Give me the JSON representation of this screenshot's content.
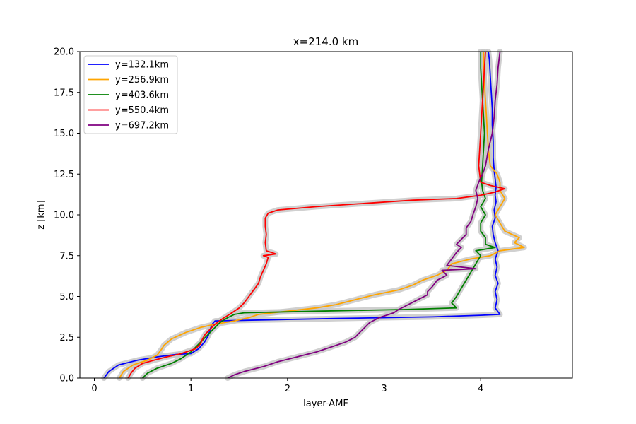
{
  "chart_data": {
    "type": "line",
    "title": "x=214.0 km",
    "xlabel": "layer-AMF",
    "ylabel": "z [km]",
    "xlim": [
      -0.15,
      4.95
    ],
    "ylim": [
      0,
      20
    ],
    "xticks": [
      "0",
      "1",
      "2",
      "3",
      "4"
    ],
    "yticks": [
      "0.0",
      "2.5",
      "5.0",
      "7.5",
      "10.0",
      "12.5",
      "15.0",
      "17.5",
      "20.0"
    ],
    "grid": false,
    "legend_position": "top-left",
    "uncertainty_band_color": "#c8c8c8",
    "series": [
      {
        "name": "y=132.1km",
        "color": "#0000ff",
        "points": [
          [
            0.1,
            0.0
          ],
          [
            0.15,
            0.4
          ],
          [
            0.25,
            0.8
          ],
          [
            0.45,
            1.1
          ],
          [
            0.65,
            1.3
          ],
          [
            0.85,
            1.45
          ],
          [
            1.0,
            1.5
          ],
          [
            1.08,
            1.8
          ],
          [
            1.14,
            2.2
          ],
          [
            1.18,
            2.6
          ],
          [
            1.2,
            3.0
          ],
          [
            1.22,
            3.3
          ],
          [
            1.25,
            3.5
          ],
          [
            2.5,
            3.65
          ],
          [
            3.5,
            3.75
          ],
          [
            4.0,
            3.85
          ],
          [
            4.2,
            3.9
          ],
          [
            4.15,
            4.3
          ],
          [
            4.17,
            4.8
          ],
          [
            4.15,
            5.3
          ],
          [
            4.18,
            5.8
          ],
          [
            4.15,
            6.3
          ],
          [
            4.17,
            6.8
          ],
          [
            4.15,
            7.3
          ],
          [
            4.18,
            7.8
          ],
          [
            4.15,
            8.3
          ],
          [
            4.13,
            8.8
          ],
          [
            4.12,
            9.3
          ],
          [
            4.15,
            9.8
          ],
          [
            4.14,
            10.3
          ],
          [
            4.16,
            10.8
          ],
          [
            4.15,
            11.2
          ],
          [
            4.16,
            11.7
          ],
          [
            4.15,
            12.2
          ],
          [
            4.14,
            12.7
          ],
          [
            4.13,
            13.5
          ],
          [
            4.13,
            14.5
          ],
          [
            4.12,
            15.5
          ],
          [
            4.12,
            16.5
          ],
          [
            4.11,
            17.5
          ],
          [
            4.1,
            18.5
          ],
          [
            4.09,
            19.5
          ],
          [
            4.08,
            20.0
          ]
        ]
      },
      {
        "name": "y=256.9km",
        "color": "#ffa500",
        "points": [
          [
            0.26,
            0.0
          ],
          [
            0.3,
            0.4
          ],
          [
            0.4,
            0.8
          ],
          [
            0.55,
            1.1
          ],
          [
            0.65,
            1.4
          ],
          [
            0.7,
            1.8
          ],
          [
            0.72,
            2.0
          ],
          [
            0.8,
            2.4
          ],
          [
            0.95,
            2.8
          ],
          [
            1.1,
            3.1
          ],
          [
            1.25,
            3.3
          ],
          [
            1.45,
            3.5
          ],
          [
            1.6,
            3.7
          ],
          [
            1.7,
            3.9
          ],
          [
            2.0,
            4.1
          ],
          [
            2.3,
            4.3
          ],
          [
            2.5,
            4.5
          ],
          [
            2.7,
            4.8
          ],
          [
            2.9,
            5.1
          ],
          [
            3.15,
            5.4
          ],
          [
            3.3,
            5.7
          ],
          [
            3.4,
            6.0
          ],
          [
            3.55,
            6.3
          ],
          [
            3.65,
            6.6
          ],
          [
            3.7,
            7.0
          ],
          [
            3.9,
            7.3
          ],
          [
            4.1,
            7.5
          ],
          [
            4.2,
            7.8
          ],
          [
            4.45,
            8.0
          ],
          [
            4.35,
            8.3
          ],
          [
            4.4,
            8.6
          ],
          [
            4.25,
            9.0
          ],
          [
            4.2,
            9.5
          ],
          [
            4.15,
            10.0
          ],
          [
            4.2,
            10.5
          ],
          [
            4.25,
            11.0
          ],
          [
            4.2,
            11.5
          ],
          [
            4.2,
            12.0
          ],
          [
            4.17,
            12.5
          ],
          [
            4.1,
            13.0
          ],
          [
            4.08,
            14.0
          ],
          [
            4.07,
            15.0
          ],
          [
            4.06,
            16.0
          ],
          [
            4.05,
            17.0
          ],
          [
            4.04,
            18.0
          ],
          [
            4.03,
            19.0
          ],
          [
            4.03,
            20.0
          ]
        ]
      },
      {
        "name": "y=403.6km",
        "color": "#008000",
        "points": [
          [
            0.5,
            0.0
          ],
          [
            0.55,
            0.3
          ],
          [
            0.65,
            0.6
          ],
          [
            0.8,
            0.9
          ],
          [
            0.9,
            1.2
          ],
          [
            1.0,
            1.6
          ],
          [
            1.05,
            1.9
          ],
          [
            1.1,
            2.2
          ],
          [
            1.15,
            2.5
          ],
          [
            1.2,
            2.8
          ],
          [
            1.25,
            3.1
          ],
          [
            1.3,
            3.4
          ],
          [
            1.38,
            3.7
          ],
          [
            1.45,
            3.9
          ],
          [
            1.55,
            4.0
          ],
          [
            2.3,
            4.1
          ],
          [
            3.2,
            4.2
          ],
          [
            3.75,
            4.3
          ],
          [
            3.7,
            4.6
          ],
          [
            3.75,
            5.0
          ],
          [
            3.8,
            5.5
          ],
          [
            3.85,
            6.0
          ],
          [
            3.9,
            6.5
          ],
          [
            3.95,
            7.0
          ],
          [
            4.0,
            7.5
          ],
          [
            3.95,
            7.8
          ],
          [
            4.15,
            8.0
          ],
          [
            4.05,
            8.2
          ],
          [
            4.05,
            8.6
          ],
          [
            4.0,
            9.0
          ],
          [
            4.0,
            9.5
          ],
          [
            4.05,
            10.0
          ],
          [
            4.0,
            10.5
          ],
          [
            4.05,
            11.0
          ],
          [
            4.02,
            11.5
          ],
          [
            4.01,
            12.0
          ],
          [
            4.02,
            13.0
          ],
          [
            4.03,
            14.0
          ],
          [
            4.04,
            15.0
          ],
          [
            4.03,
            16.0
          ],
          [
            4.02,
            17.0
          ],
          [
            4.01,
            18.0
          ],
          [
            4.0,
            19.0
          ],
          [
            4.0,
            20.0
          ]
        ]
      },
      {
        "name": "y=550.4km",
        "color": "#ff0000",
        "points": [
          [
            0.35,
            0.0
          ],
          [
            0.38,
            0.3
          ],
          [
            0.42,
            0.6
          ],
          [
            0.5,
            0.9
          ],
          [
            0.62,
            1.1
          ],
          [
            0.75,
            1.3
          ],
          [
            0.9,
            1.5
          ],
          [
            1.05,
            1.8
          ],
          [
            1.1,
            2.1
          ],
          [
            1.12,
            2.4
          ],
          [
            1.15,
            2.7
          ],
          [
            1.2,
            3.0
          ],
          [
            1.25,
            3.3
          ],
          [
            1.32,
            3.6
          ],
          [
            1.4,
            3.9
          ],
          [
            1.45,
            4.1
          ],
          [
            1.5,
            4.3
          ],
          [
            1.55,
            4.6
          ],
          [
            1.6,
            5.0
          ],
          [
            1.65,
            5.4
          ],
          [
            1.7,
            5.8
          ],
          [
            1.72,
            6.2
          ],
          [
            1.75,
            6.6
          ],
          [
            1.78,
            7.0
          ],
          [
            1.8,
            7.4
          ],
          [
            1.75,
            7.5
          ],
          [
            1.88,
            7.6
          ],
          [
            1.78,
            7.8
          ],
          [
            1.77,
            8.3
          ],
          [
            1.78,
            8.8
          ],
          [
            1.77,
            9.3
          ],
          [
            1.77,
            9.8
          ],
          [
            1.8,
            10.1
          ],
          [
            1.9,
            10.3
          ],
          [
            2.3,
            10.5
          ],
          [
            2.8,
            10.7
          ],
          [
            3.3,
            10.9
          ],
          [
            3.75,
            11.0
          ],
          [
            4.0,
            11.2
          ],
          [
            4.15,
            11.4
          ],
          [
            4.25,
            11.6
          ],
          [
            4.1,
            11.8
          ],
          [
            4.0,
            12.0
          ],
          [
            3.98,
            13.0
          ],
          [
            3.99,
            14.0
          ],
          [
            4.0,
            15.0
          ],
          [
            4.01,
            16.0
          ],
          [
            4.02,
            17.0
          ],
          [
            4.03,
            18.0
          ],
          [
            4.04,
            19.0
          ],
          [
            4.05,
            20.0
          ]
        ]
      },
      {
        "name": "y=697.2km",
        "color": "#800080",
        "points": [
          [
            1.38,
            0.0
          ],
          [
            1.45,
            0.2
          ],
          [
            1.55,
            0.4
          ],
          [
            1.75,
            0.7
          ],
          [
            1.9,
            1.0
          ],
          [
            2.1,
            1.3
          ],
          [
            2.3,
            1.6
          ],
          [
            2.45,
            1.9
          ],
          [
            2.6,
            2.2
          ],
          [
            2.7,
            2.5
          ],
          [
            2.75,
            2.8
          ],
          [
            2.8,
            3.1
          ],
          [
            2.85,
            3.4
          ],
          [
            2.95,
            3.7
          ],
          [
            3.1,
            4.0
          ],
          [
            3.15,
            4.2
          ],
          [
            3.25,
            4.5
          ],
          [
            3.35,
            4.8
          ],
          [
            3.45,
            5.1
          ],
          [
            3.45,
            5.3
          ],
          [
            3.5,
            5.6
          ],
          [
            3.55,
            6.0
          ],
          [
            3.65,
            6.3
          ],
          [
            3.6,
            6.6
          ],
          [
            3.95,
            6.7
          ],
          [
            3.65,
            6.9
          ],
          [
            3.7,
            7.3
          ],
          [
            3.75,
            7.7
          ],
          [
            3.8,
            8.0
          ],
          [
            3.75,
            8.2
          ],
          [
            3.8,
            8.5
          ],
          [
            3.85,
            8.8
          ],
          [
            3.85,
            9.2
          ],
          [
            3.9,
            9.6
          ],
          [
            3.92,
            10.0
          ],
          [
            3.95,
            10.5
          ],
          [
            3.97,
            11.0
          ],
          [
            3.95,
            11.5
          ],
          [
            3.98,
            12.0
          ],
          [
            4.02,
            12.5
          ],
          [
            4.05,
            13.0
          ],
          [
            4.08,
            14.0
          ],
          [
            4.12,
            15.0
          ],
          [
            4.14,
            16.0
          ],
          [
            4.15,
            17.0
          ],
          [
            4.17,
            18.0
          ],
          [
            4.18,
            19.0
          ],
          [
            4.2,
            20.0
          ]
        ]
      }
    ]
  }
}
